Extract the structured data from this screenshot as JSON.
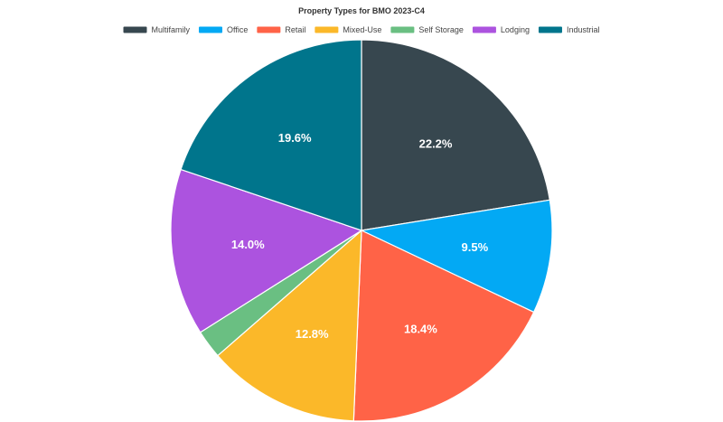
{
  "chart_data": {
    "type": "pie",
    "title": "Property Types for BMO 2023-C4",
    "legend_position": "top",
    "categories": [
      "Multifamily",
      "Office",
      "Retail",
      "Mixed-Use",
      "Self Storage",
      "Lodging",
      "Industrial"
    ],
    "values": [
      22.2,
      9.5,
      18.4,
      12.8,
      2.4,
      14.0,
      19.6
    ],
    "labels": [
      "22.2%",
      "9.5%",
      "18.4%",
      "12.8%",
      "",
      "14.0%",
      "19.6%"
    ],
    "colors": [
      "#37474f",
      "#03a9f4",
      "#ff6347",
      "#fbb829",
      "#6abf82",
      "#ac53df",
      "#00758c"
    ]
  }
}
